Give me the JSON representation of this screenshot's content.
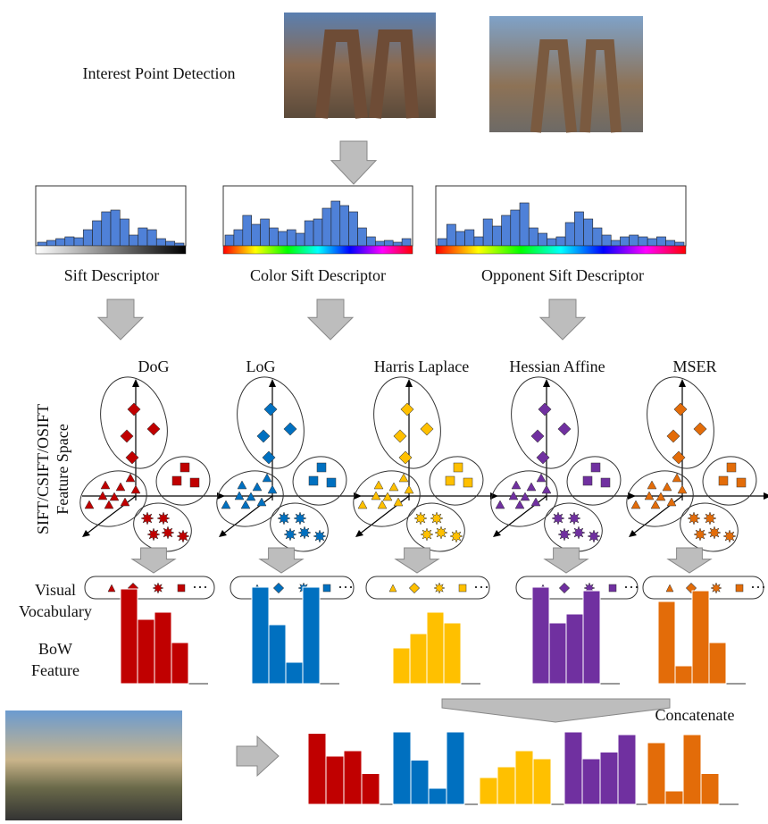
{
  "header": {
    "title": "Interest Point Detection"
  },
  "descriptors": [
    "Sift Descriptor",
    "Color Sift Descriptor",
    "Opponent Sift Descriptor"
  ],
  "detectors": [
    "DoG",
    "LoG",
    "Harris Laplace",
    "Hessian Affine",
    "MSER"
  ],
  "feature_space_label": [
    "SIFT/CSIFT/OSIFT",
    "Feature Space"
  ],
  "visual_vocabulary_label": [
    "Visual",
    "Vocabulary"
  ],
  "bow_feature_label": [
    "BoW",
    "Feature"
  ],
  "vocabulary_ellipsis": "···",
  "concatenate_label": "Concatenate"
}
